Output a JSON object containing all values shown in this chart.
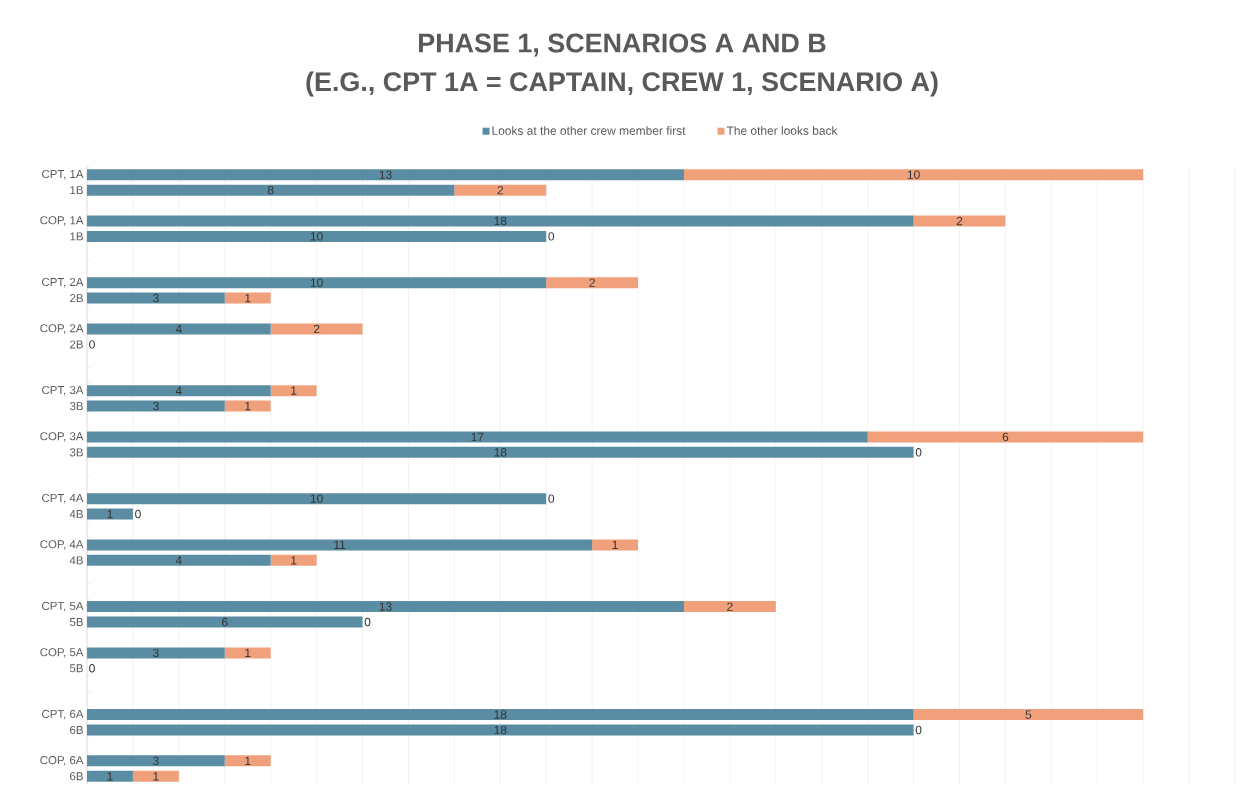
{
  "chart_data": {
    "type": "bar",
    "orientation": "horizontal",
    "stacked": true,
    "title": "PHASE 1, SCENARIOS A AND B",
    "subtitle": "(E.G., CPT 1A = CAPTAIN, CREW 1, SCENARIO A)",
    "categories": [
      "CPT, 1A",
      "1B",
      null,
      "COP, 1A",
      "1B",
      null,
      null,
      "CPT, 2A",
      "2B",
      null,
      "COP, 2A",
      "2B",
      null,
      null,
      "CPT, 3A",
      "3B",
      null,
      "COP, 3A",
      "3B",
      null,
      null,
      "CPT, 4A",
      "4B",
      null,
      "COP, 4A",
      "4B",
      null,
      null,
      "CPT, 5A",
      "5B",
      null,
      "COP, 5A",
      "5B",
      null,
      null,
      "CPT, 6A",
      "6B",
      null,
      "COP, 6A",
      "6B"
    ],
    "series": [
      {
        "name": "Looks at the other crew member first",
        "color": "#5a8ca3",
        "values": [
          13,
          8,
          null,
          18,
          10,
          null,
          null,
          10,
          3,
          null,
          4,
          0,
          null,
          null,
          4,
          3,
          null,
          17,
          18,
          null,
          null,
          10,
          1,
          null,
          11,
          4,
          null,
          null,
          13,
          6,
          null,
          3,
          0,
          null,
          null,
          18,
          18,
          null,
          3,
          1
        ],
        "value_labels": [
          "13",
          "8",
          null,
          "18",
          "10",
          null,
          null,
          "10",
          "3",
          null,
          "4",
          "0",
          null,
          null,
          "4",
          "3",
          null,
          "17",
          "18",
          null,
          null,
          "10",
          "1",
          null,
          "11",
          "4",
          null,
          null,
          "13",
          "6",
          null,
          "3",
          "0",
          null,
          null,
          "18",
          "18",
          null,
          "3",
          "1"
        ]
      },
      {
        "name": "The other looks back",
        "color": "#f0a07b",
        "values": [
          10,
          2,
          null,
          2,
          0,
          null,
          null,
          2,
          1,
          null,
          2,
          0,
          null,
          null,
          1,
          1,
          null,
          6,
          0,
          null,
          null,
          0,
          0,
          null,
          1,
          1,
          null,
          null,
          2,
          0,
          null,
          1,
          0,
          null,
          null,
          5,
          0,
          null,
          1,
          1
        ],
        "value_labels": [
          "10",
          "2",
          null,
          "2",
          "0",
          null,
          null,
          "2",
          "1",
          null,
          "2",
          null,
          null,
          null,
          "1",
          "1",
          null,
          "6",
          "0",
          null,
          null,
          "0",
          "0",
          null,
          "1",
          "1",
          null,
          null,
          "2",
          "0",
          null,
          "1",
          null,
          null,
          null,
          "5",
          "0",
          null,
          "1",
          "1"
        ]
      }
    ],
    "grid": "x",
    "legend": "top"
  }
}
